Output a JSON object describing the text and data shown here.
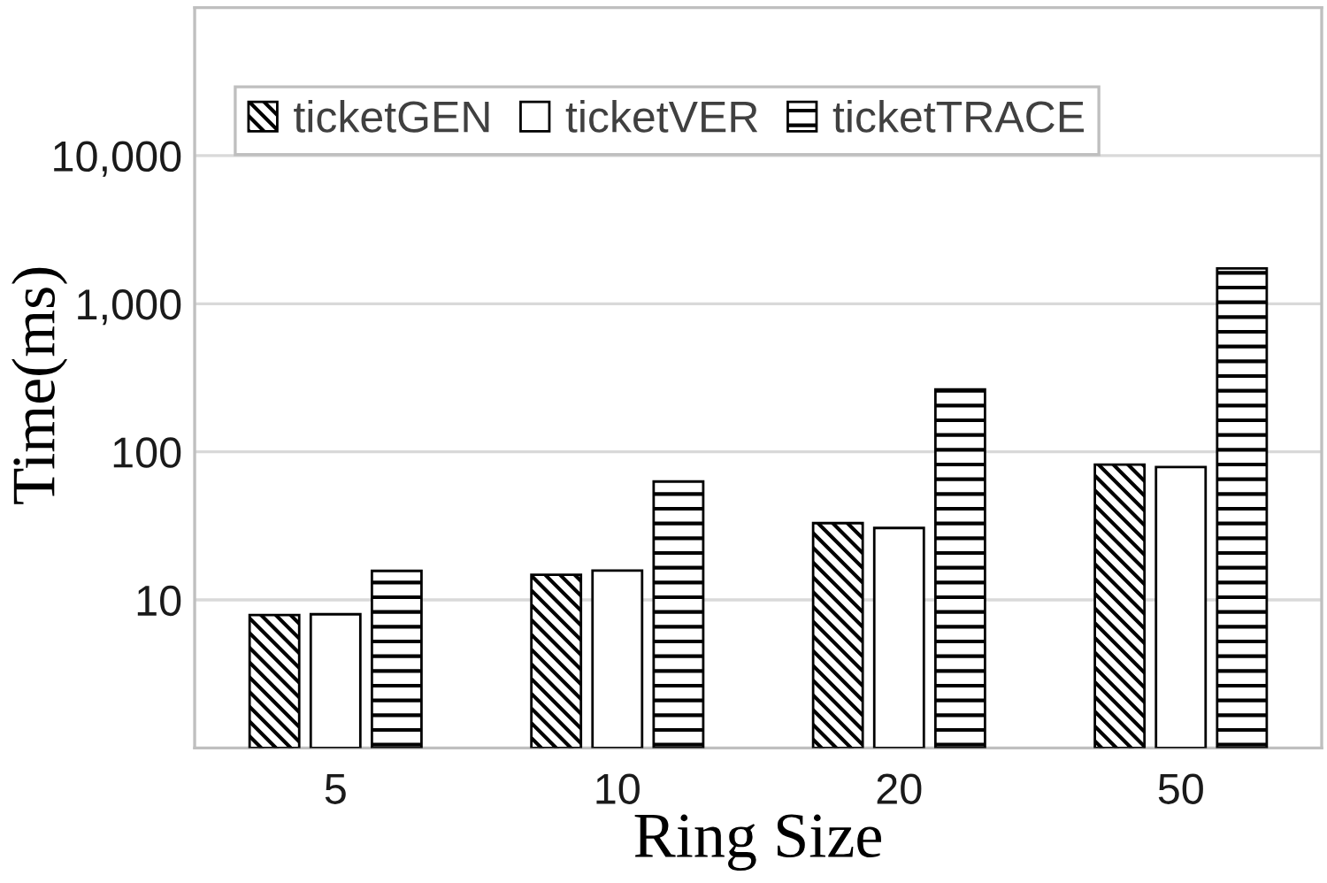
{
  "chart_data": {
    "type": "bar",
    "xlabel": "Ring Size",
    "ylabel": "Time(ms)",
    "categories": [
      "5",
      "10",
      "20",
      "50"
    ],
    "series": [
      {
        "name": "ticketGEN",
        "color": "#000000",
        "values": [
          7.9,
          14.8,
          33,
          82
        ]
      },
      {
        "name": "ticketVER",
        "color": "#000000",
        "values": [
          8,
          15.8,
          30.6,
          79
        ]
      },
      {
        "name": "ticketTRACE",
        "color": "#000000",
        "values": [
          15.7,
          63,
          264,
          1730
        ]
      }
    ],
    "log": true,
    "ylim": [
      1,
      100000
    ],
    "yticks": [
      10,
      100,
      {
        "value": 1000,
        "label": "1,000"
      },
      {
        "value": 10000,
        "label": "10,000"
      }
    ],
    "grid": "y",
    "legend": "top left"
  }
}
